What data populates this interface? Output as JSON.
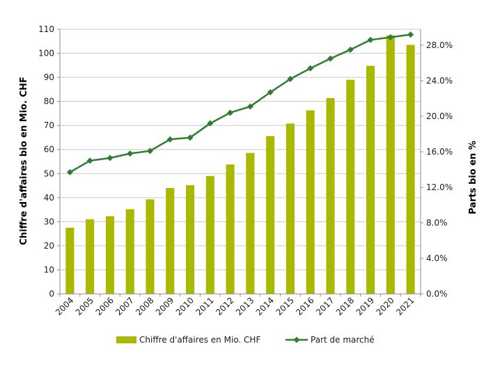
{
  "chart_data": {
    "type": "bar",
    "combo": "bar+line (secondary axis)",
    "categories": [
      "2004",
      "2005",
      "2006",
      "2007",
      "2008",
      "2009",
      "2010",
      "2011",
      "2012",
      "2013",
      "2014",
      "2015",
      "2016",
      "2017",
      "2018",
      "2019",
      "2020",
      "2021"
    ],
    "series": [
      {
        "name": "Chiffre d'affaires en Mio. CHF",
        "type": "bar",
        "axis": "left",
        "color": "#a9b900",
        "values": [
          27.5,
          31,
          32.3,
          35.2,
          39.3,
          44,
          45.2,
          49,
          53.8,
          58.6,
          65.6,
          70.8,
          76.3,
          81.4,
          89,
          94.8,
          107.4,
          103.5
        ]
      },
      {
        "name": "Part de marché",
        "type": "line",
        "axis": "right",
        "color": "#2e7d32",
        "marker": "diamond",
        "values": [
          13.7,
          15.0,
          15.3,
          15.8,
          16.1,
          17.4,
          17.6,
          19.2,
          20.4,
          21.1,
          22.7,
          24.2,
          25.4,
          26.5,
          27.5,
          28.6,
          28.9,
          29.2
        ]
      }
    ],
    "ylabel": "Chiffre d'affaires bio en Mio. CHF",
    "ylim": [
      0,
      110
    ],
    "yticks": [
      "0",
      "10",
      "20",
      "30",
      "40",
      "50",
      "60",
      "70",
      "80",
      "90",
      "100",
      "110"
    ],
    "y2label": "Parts bio en %",
    "y2lim": [
      0,
      29.8
    ],
    "y2ticks": [
      "0.0%",
      "4.0%",
      "8.0%",
      "12.0%",
      "16.0%",
      "20.0%",
      "24.0%",
      "28.0%"
    ],
    "grid": "horizontal",
    "legend": "bottom"
  }
}
